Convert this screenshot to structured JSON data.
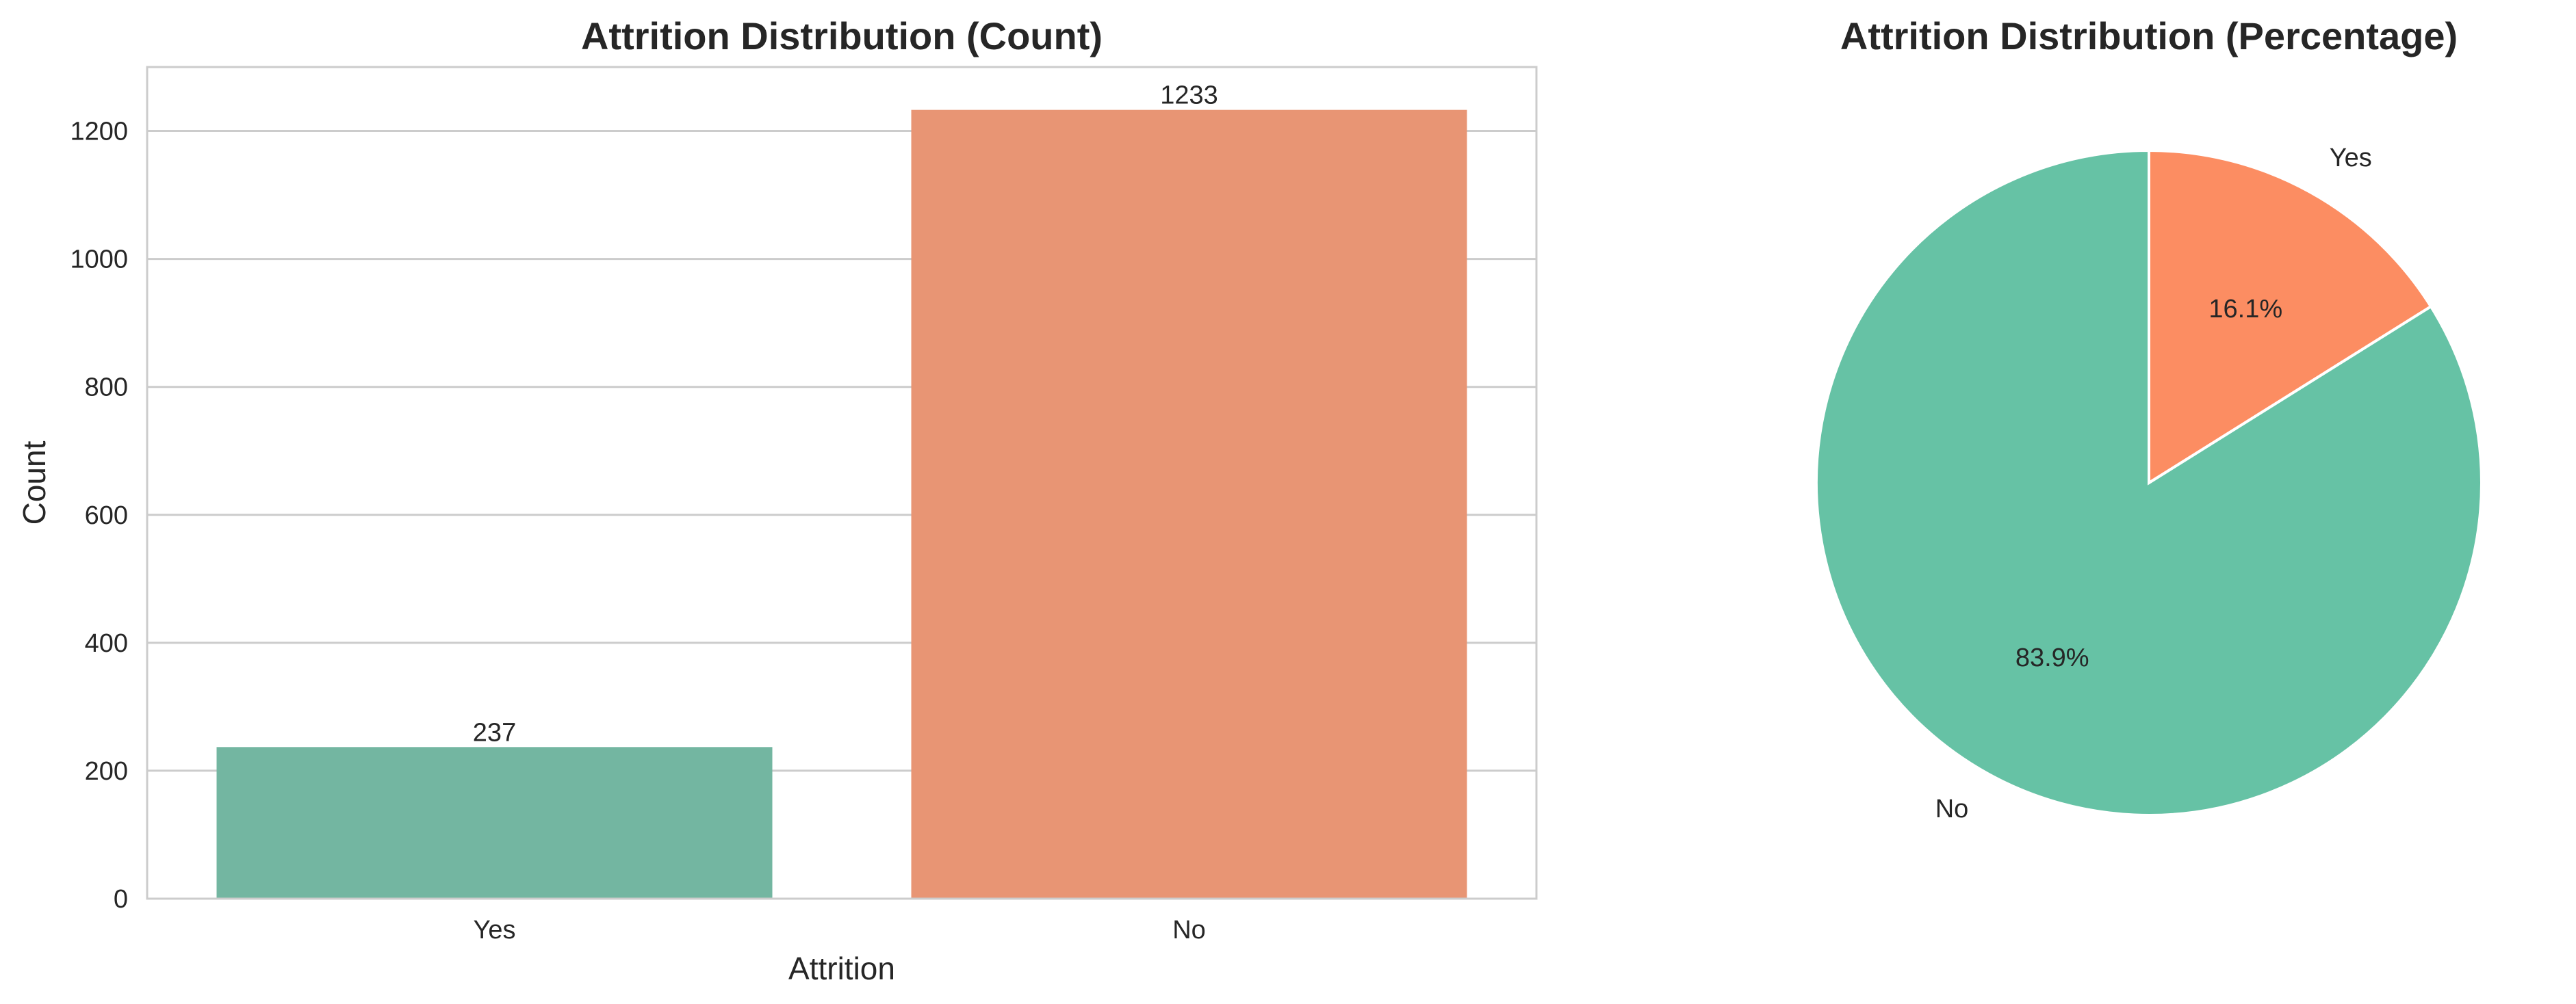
{
  "chart_data": [
    {
      "type": "bar",
      "title": "Attrition Distribution (Count)",
      "xlabel": "Attrition",
      "ylabel": "Count",
      "categories": [
        "Yes",
        "No"
      ],
      "values": [
        237,
        1233
      ],
      "value_labels": [
        "237",
        "1233"
      ],
      "colors": [
        "#73b6a1",
        "#e89574"
      ],
      "ylim": [
        0,
        1300
      ],
      "yticks": [
        0,
        200,
        400,
        600,
        800,
        1000,
        1200
      ],
      "ytick_labels": [
        "0",
        "200",
        "400",
        "600",
        "800",
        "1000",
        "1200"
      ],
      "grid": "horizontal"
    },
    {
      "type": "pie",
      "title": "Attrition Distribution (Percentage)",
      "slices": [
        {
          "label": "Yes",
          "value": 16.1,
          "pct_label": "16.1%",
          "color": "#fc8d62"
        },
        {
          "label": "No",
          "value": 83.9,
          "pct_label": "83.9%",
          "color": "#66c2a5"
        }
      ],
      "start": "top",
      "direction": "clockwise"
    }
  ]
}
